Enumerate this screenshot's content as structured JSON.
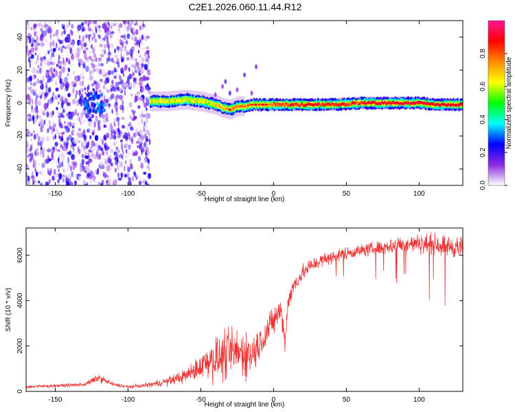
{
  "title": "C2E1.2026.060.11.44.R12",
  "chart_data": [
    {
      "type": "heatmap",
      "xlabel": "Height of straight line (km)",
      "ylabel": "Frequency (Hz)",
      "xlim": [
        -170,
        130
      ],
      "ylim": [
        -50,
        50
      ],
      "xticks": [
        -150,
        -100,
        -50,
        0,
        50,
        100
      ],
      "yticks": [
        -40,
        -20,
        0,
        20,
        40
      ],
      "colorbar": {
        "label": "Normalized spectral amplitude",
        "range": [
          0,
          1
        ],
        "ticks": [
          0.0,
          0.2,
          0.4,
          0.6,
          0.8
        ],
        "stops": [
          "#ffffff",
          "#8a2be2",
          "#0000ff",
          "#00ffff",
          "#00ff00",
          "#ffff00",
          "#ff8c00",
          "#ff0000",
          "#ff1493"
        ]
      },
      "ridge": {
        "x": [
          -85,
          -75,
          -60,
          -50,
          -40,
          -35,
          -30,
          -25,
          -20,
          -15,
          -10,
          -5,
          0,
          20,
          40,
          60,
          80,
          100,
          110,
          120,
          130
        ],
        "freq": [
          1,
          1,
          2,
          1,
          -1,
          -3,
          -4,
          -2,
          -2,
          -1,
          -1,
          -1,
          -1,
          -1,
          -1,
          0,
          0,
          0,
          -1,
          -1,
          -1
        ]
      }
    },
    {
      "type": "line",
      "xlabel": "Height of straight line (km)",
      "ylabel": "SNR (10 * v/v)",
      "xlim": [
        -170,
        130
      ],
      "ylim": [
        0,
        7200
      ],
      "xticks": [
        -150,
        -100,
        -50,
        0,
        50,
        100
      ],
      "yticks": [
        0,
        2000,
        4000,
        6000
      ],
      "series": [
        {
          "name": "SNR",
          "color": "#ee3333",
          "x": [
            -170,
            -150,
            -130,
            -120,
            -110,
            -100,
            -90,
            -80,
            -70,
            -60,
            -50,
            -45,
            -40,
            -35,
            -30,
            -25,
            -20,
            -15,
            -10,
            -5,
            0,
            5,
            8,
            10,
            15,
            20,
            25,
            30,
            40,
            50,
            60,
            70,
            80,
            90,
            100,
            110,
            120,
            130
          ],
          "mean": [
            200,
            250,
            300,
            600,
            300,
            200,
            250,
            350,
            500,
            700,
            1100,
            1400,
            1400,
            1500,
            1700,
            1700,
            1700,
            1600,
            2100,
            2600,
            3100,
            3600,
            2200,
            4000,
            4800,
            5200,
            5500,
            5700,
            5900,
            6100,
            6200,
            6300,
            6400,
            6500,
            6500,
            6500,
            6400,
            6300
          ],
          "spread": [
            100,
            100,
            120,
            250,
            120,
            100,
            120,
            220,
            300,
            450,
            800,
            1200,
            1400,
            1500,
            1600,
            1600,
            1500,
            1400,
            1100,
            1000,
            900,
            900,
            700,
            700,
            600,
            550,
            500,
            450,
            450,
            400,
            400,
            450,
            500,
            550,
            600,
            650,
            700,
            700
          ]
        }
      ]
    }
  ]
}
